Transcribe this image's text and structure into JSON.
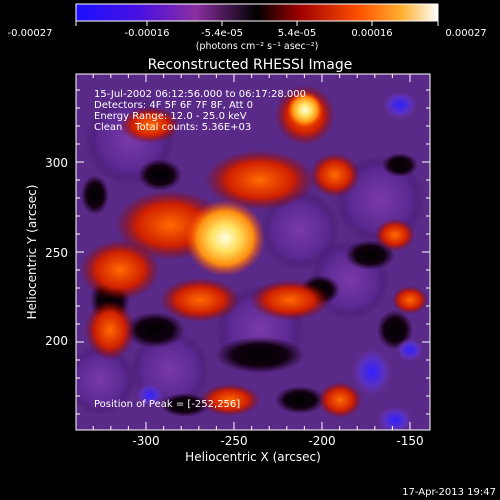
{
  "colorbar": {
    "tick_labels": [
      "-0.00027",
      "-0.00016",
      "-5.4e-05",
      "5.4e-05",
      "0.00016",
      "0.00027"
    ],
    "unit_label": "(photons cm⁻² s⁻¹ asec⁻²)",
    "colors": [
      "#1a10ff",
      "#5a0fd0",
      "#8a2fa0",
      "#000000",
      "#b00000",
      "#ff6000",
      "#ffffff"
    ]
  },
  "title": "Reconstructed RHESSI Image",
  "info_lines": [
    "15-Jul-2002 06:12:56.000 to 06:17:28.000",
    "Detectors: 4F 5F 6F 7F 8F, Att 0",
    "Energy Range: 12.0 - 25.0 keV",
    "Clean    Total counts: 5.36E+03"
  ],
  "peak_text": "Position of Peak = [-252,256]",
  "xaxis": {
    "label": "Heliocentric X (arcsec)",
    "ticks": [
      "-300",
      "-250",
      "-200",
      "-150"
    ]
  },
  "yaxis": {
    "label": "Heliocentric Y (arcsec)",
    "ticks": [
      "200",
      "250",
      "300"
    ]
  },
  "footer_date": "17-Apr-2013 19:47"
}
